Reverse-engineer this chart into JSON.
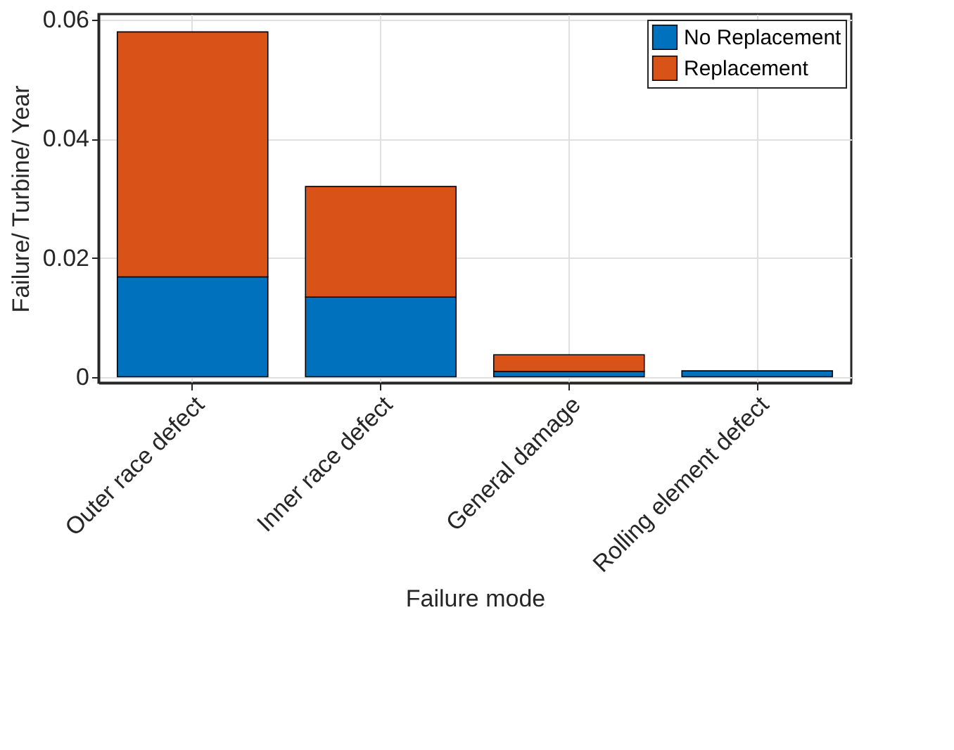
{
  "chart_data": {
    "type": "bar",
    "stacked": true,
    "xlabel": "Failure mode",
    "ylabel": "Failure/ Turbine/ Year",
    "categories": [
      "Outer race defect",
      "Inner race defect",
      "General damage",
      "Rolling element defect"
    ],
    "series": [
      {
        "name": "No Replacement",
        "color": "#0072bd",
        "values": [
          0.0168,
          0.0134,
          0.0009,
          0.001
        ]
      },
      {
        "name": "Replacement",
        "color": "#d95319",
        "values": [
          0.0412,
          0.0186,
          0.0028,
          0
        ]
      }
    ],
    "ylim": [
      -0.001,
      0.061
    ],
    "yticks": [
      0,
      {
        "value": 0.02,
        "label": "0.02"
      },
      {
        "value": 0.04,
        "label": "0.04"
      },
      {
        "value": 0.06,
        "label": "0.06"
      }
    ],
    "grid": true,
    "legend": "top right"
  }
}
